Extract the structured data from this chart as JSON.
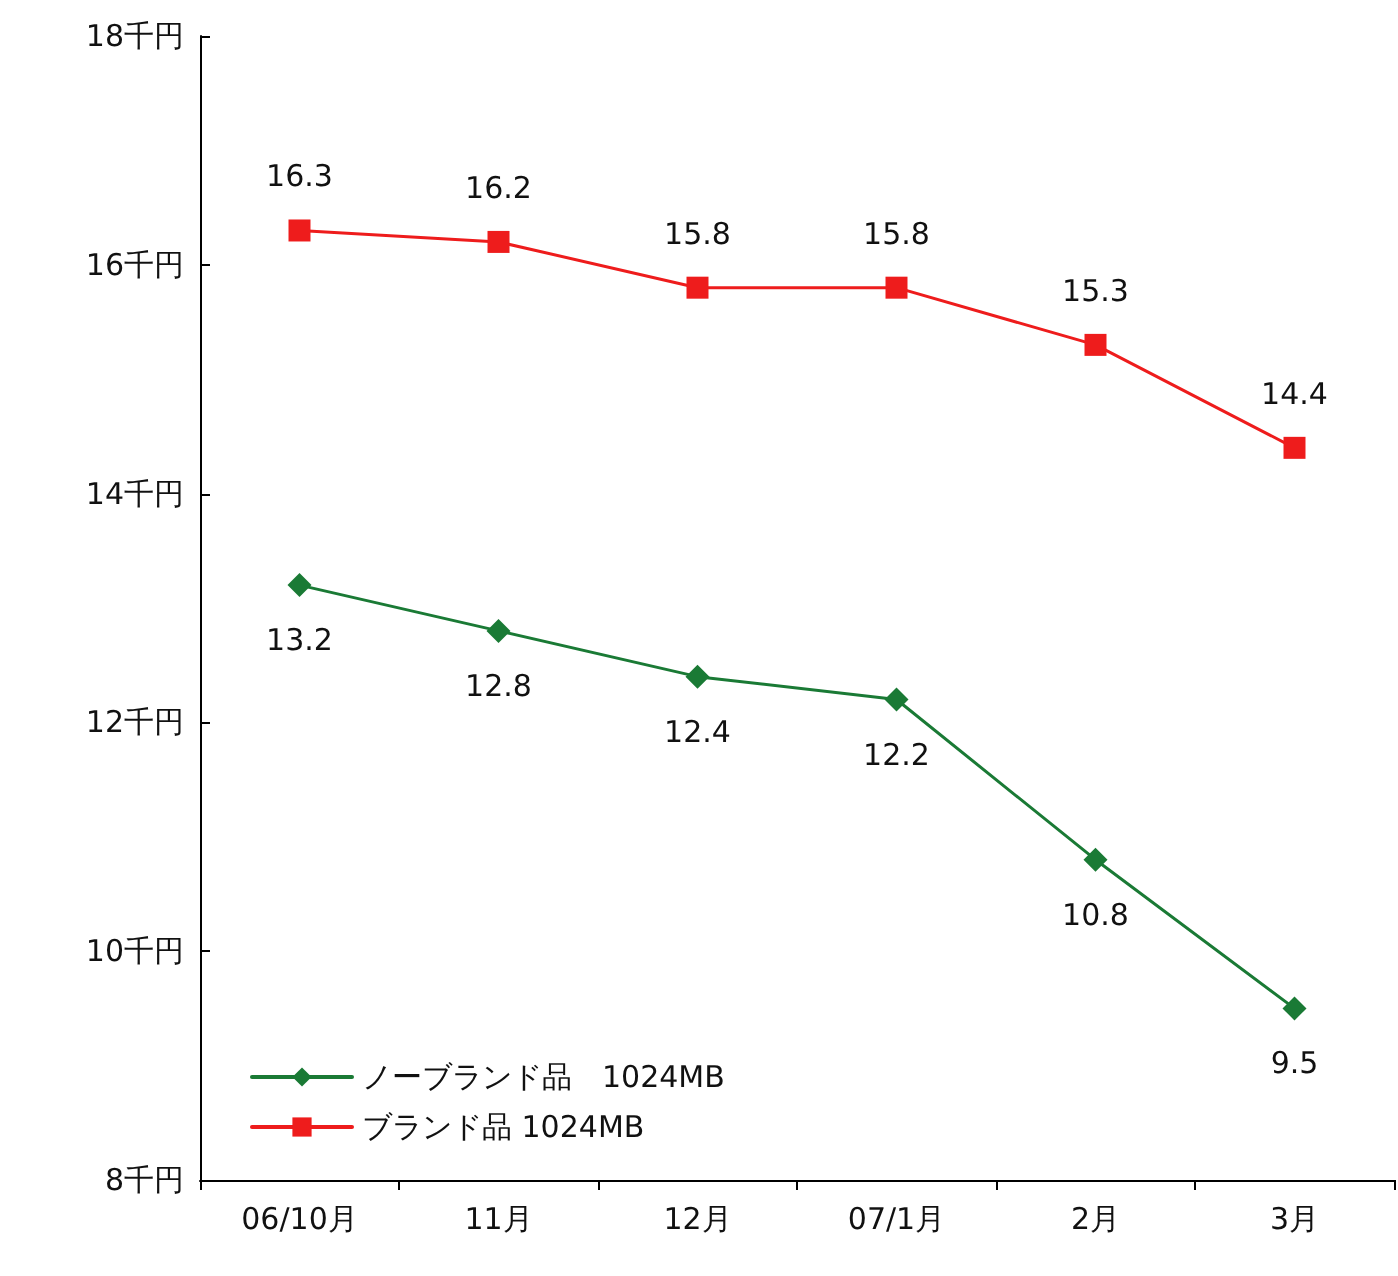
{
  "chart_data": {
    "type": "line",
    "categories": [
      "06/10月",
      "11月",
      "12月",
      "07/1月",
      "2月",
      "3月"
    ],
    "series": [
      {
        "name": "ノーブランド品　1024MB",
        "color": "#1a7a35",
        "marker": "diamond",
        "values": [
          13.2,
          12.8,
          12.4,
          12.2,
          10.8,
          9.5
        ]
      },
      {
        "name": "ブランド品 1024MB",
        "color": "#ee1c1c",
        "marker": "square",
        "values": [
          16.3,
          16.2,
          15.8,
          15.8,
          15.3,
          14.4
        ]
      }
    ],
    "ylim": [
      8,
      18
    ],
    "yticks": [
      {
        "value": 8,
        "label": "8千円"
      },
      {
        "value": 10,
        "label": "10千円"
      },
      {
        "value": 12,
        "label": "12千円"
      },
      {
        "value": 14,
        "label": "14千円"
      },
      {
        "value": 16,
        "label": "16千円"
      },
      {
        "value": 18,
        "label": "18千円"
      }
    ],
    "data_labels": true,
    "grid": false,
    "legend": "bottom left",
    "line_style": "solid"
  }
}
